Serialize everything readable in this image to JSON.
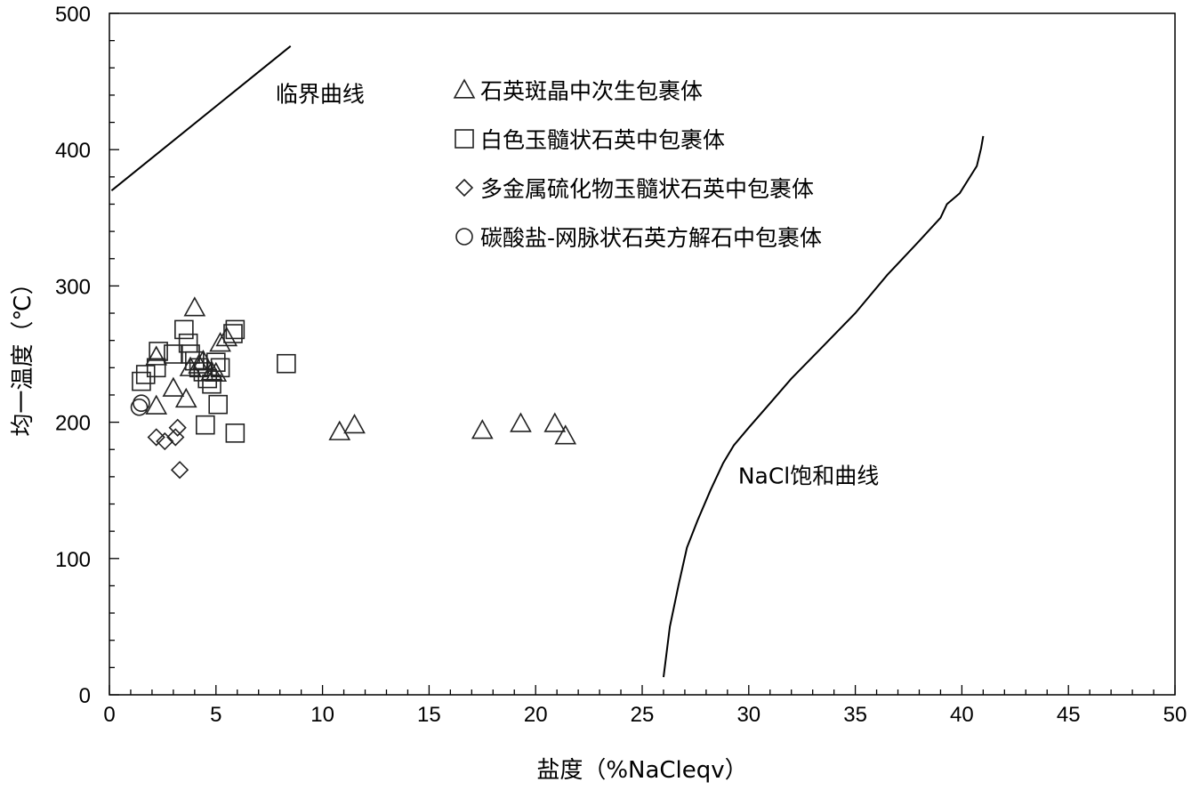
{
  "chart_data": {
    "type": "scatter",
    "xlabel": "盐度（%NaCleqv）",
    "ylabel": "均一温度（℃）",
    "xlim": [
      0,
      50
    ],
    "ylim": [
      0,
      500
    ],
    "xticks": [
      0,
      5,
      10,
      15,
      20,
      25,
      30,
      35,
      40,
      45,
      50
    ],
    "yticks": [
      0,
      100,
      200,
      300,
      400,
      500
    ],
    "grid": false,
    "legend_position": "top-center",
    "series": [
      {
        "name": "石英斑晶中次生包裹体",
        "marker": "triangle",
        "points": [
          [
            4.0,
            284
          ],
          [
            2.2,
            248
          ],
          [
            2.2,
            212
          ],
          [
            3.0,
            225
          ],
          [
            3.6,
            217
          ],
          [
            4.2,
            242
          ],
          [
            4.8,
            237
          ],
          [
            5.0,
            236
          ],
          [
            5.2,
            258
          ],
          [
            5.5,
            262
          ],
          [
            4.4,
            245
          ],
          [
            3.8,
            240
          ],
          [
            10.8,
            193
          ],
          [
            11.5,
            198
          ],
          [
            17.5,
            194
          ],
          [
            19.3,
            199
          ],
          [
            20.9,
            199
          ],
          [
            21.4,
            190
          ]
        ]
      },
      {
        "name": "白色玉髓状石英中包裹体",
        "marker": "square",
        "points": [
          [
            3.5,
            268
          ],
          [
            3.7,
            258
          ],
          [
            3.8,
            250
          ],
          [
            4.0,
            245
          ],
          [
            4.2,
            240
          ],
          [
            4.4,
            237
          ],
          [
            4.6,
            232
          ],
          [
            4.8,
            228
          ],
          [
            5.0,
            244
          ],
          [
            5.2,
            240
          ],
          [
            5.8,
            265
          ],
          [
            5.9,
            268
          ],
          [
            4.5,
            198
          ],
          [
            5.1,
            213
          ],
          [
            5.9,
            192
          ],
          [
            8.3,
            243
          ],
          [
            1.5,
            230
          ],
          [
            1.7,
            235
          ],
          [
            2.2,
            240
          ],
          [
            2.3,
            252
          ],
          [
            3.0,
            250
          ]
        ]
      },
      {
        "name": "多金属硫化物玉髓状石英中包裹体",
        "marker": "diamond",
        "points": [
          [
            2.2,
            189
          ],
          [
            2.6,
            186
          ],
          [
            3.1,
            189
          ],
          [
            3.2,
            196
          ],
          [
            3.3,
            165
          ]
        ]
      },
      {
        "name": "碳酸盐-网脉状石英方解石中包裹体",
        "marker": "circle",
        "points": [
          [
            1.4,
            211
          ],
          [
            1.5,
            214
          ]
        ]
      }
    ],
    "curves": [
      {
        "name": "临界曲线",
        "points": [
          [
            0.1,
            370
          ],
          [
            8.5,
            476
          ]
        ]
      },
      {
        "name": "NaCl饱和曲线",
        "points": [
          [
            26.0,
            13
          ],
          [
            26.3,
            50
          ],
          [
            26.7,
            80
          ],
          [
            27.1,
            108
          ],
          [
            27.6,
            128
          ],
          [
            28.2,
            150
          ],
          [
            28.8,
            170
          ],
          [
            29.3,
            183
          ],
          [
            30.0,
            196
          ],
          [
            31.0,
            214
          ],
          [
            32.0,
            232
          ],
          [
            33.5,
            256
          ],
          [
            35.0,
            280
          ],
          [
            36.5,
            308
          ],
          [
            38.0,
            333
          ],
          [
            39.0,
            350
          ],
          [
            39.3,
            360
          ],
          [
            39.9,
            368
          ],
          [
            40.3,
            378
          ],
          [
            40.7,
            388
          ],
          [
            40.9,
            401
          ],
          [
            41.0,
            410
          ]
        ]
      }
    ],
    "annotations": [
      {
        "text": "临界曲线",
        "x": 7.8,
        "y": 435
      },
      {
        "text": "NaCl饱和曲线",
        "x": 29.5,
        "y": 155
      }
    ]
  }
}
